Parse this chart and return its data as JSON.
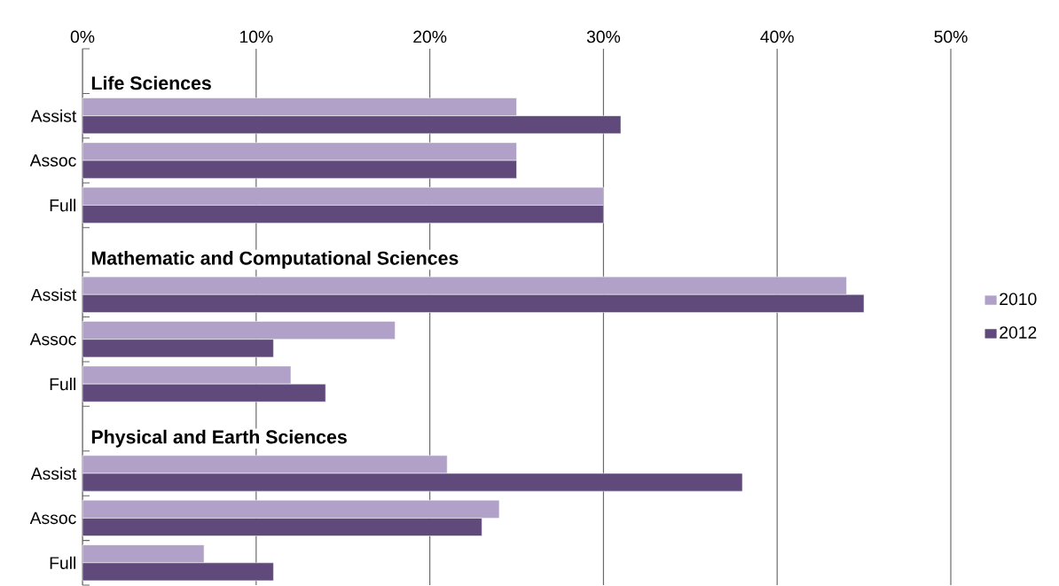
{
  "chart_data": {
    "type": "bar",
    "orientation": "horizontal",
    "categories": [
      null,
      "Assist",
      "Assoc",
      "Full",
      null,
      "Assist",
      "Assoc",
      "Full",
      null,
      "Assist",
      "Assoc",
      "Full"
    ],
    "series": [
      {
        "name": "2010",
        "color": "#b1a0c7",
        "values": [
          null,
          25,
          25,
          30,
          null,
          44,
          18,
          12,
          null,
          21,
          24,
          7
        ]
      },
      {
        "name": "2012",
        "color": "#604a7b",
        "values": [
          null,
          31,
          25,
          30,
          null,
          45,
          11,
          14,
          null,
          38,
          23,
          11
        ]
      }
    ],
    "annotations": [
      "Life Sciences",
      "Mathematic and Computational Sciences",
      "Physical and Earth Sciences"
    ],
    "xlim": [
      0,
      50
    ],
    "xticks": [
      {
        "value": 0,
        "label": "0%"
      },
      {
        "value": 10,
        "label": "10%"
      },
      {
        "value": 20,
        "label": "20%"
      },
      {
        "value": 30,
        "label": "30%"
      },
      {
        "value": 40,
        "label": "40%"
      },
      {
        "value": 50,
        "label": "50%"
      }
    ],
    "grid": "x",
    "legend": "right"
  }
}
